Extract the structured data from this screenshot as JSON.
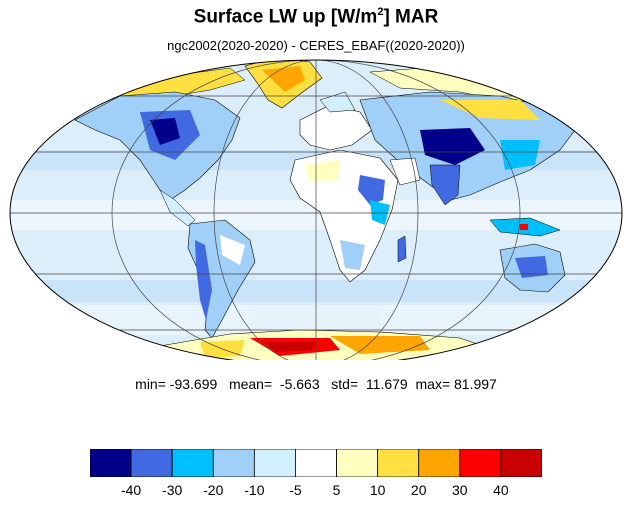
{
  "title": {
    "main": "Surface LW up [W/m",
    "sup": "2",
    "tail": "]  MAR"
  },
  "subtitle": "ngc2002(2020-2020) - CERES_EBAF((2020-2020))",
  "stats": {
    "min_label": "min=",
    "min": "-93.699",
    "mean_label": "mean=",
    "mean": "-5.663",
    "std_label": "std=",
    "std": "11.679",
    "max_label": "max=",
    "max": "81.997"
  },
  "colorbar": {
    "colors": [
      "#00008b",
      "#4169e1",
      "#00bfff",
      "#a0cff8",
      "#d0f0ff",
      "#ffffff",
      "#ffffc0",
      "#ffe040",
      "#ffa500",
      "#ff0000",
      "#c80000"
    ],
    "labels": [
      "-40",
      "-30",
      "-20",
      "-10",
      "-5",
      "5",
      "10",
      "20",
      "30",
      "40"
    ]
  },
  "map": {
    "projection": "mollweide",
    "ocean_color": "#dceefa",
    "coast_color": "#000000",
    "grid_color": "#444444"
  }
}
